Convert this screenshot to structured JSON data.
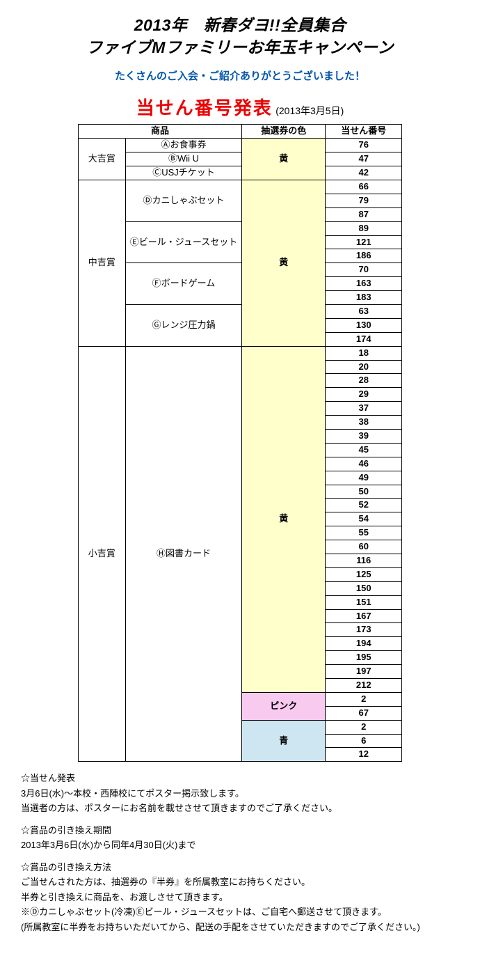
{
  "header": {
    "title_line1": "2013年　新春ダヨ!!全員集合",
    "title_line2": "ファイブMファミリーお年玉キャンペーン",
    "thanks": "たくさんのご入会・ご紹介ありがとうございました！",
    "announce": "当せん番号発表",
    "announce_date": "(2013年3月5日)"
  },
  "colors": {
    "yellow": "#ffffcc",
    "pink": "#f8caf0",
    "blue": "#cde6f2"
  },
  "table": {
    "headers": {
      "product": "商品",
      "ticket_color": "抽選券の色",
      "number": "当せん番号"
    },
    "groups": [
      {
        "category": "大吉賞",
        "colors": [
          {
            "label": "黄",
            "color_key": "yellow",
            "items": [
              {
                "name": "Ⓐお食事券",
                "numbers": [
                  76
                ]
              },
              {
                "name": "ⒷWii U",
                "numbers": [
                  47
                ]
              },
              {
                "name": "ⒸUSJチケット",
                "numbers": [
                  42
                ]
              }
            ]
          }
        ]
      },
      {
        "category": "中吉賞",
        "colors": [
          {
            "label": "黄",
            "color_key": "yellow",
            "items": [
              {
                "name": "Ⓓカニしゃぶセット",
                "numbers": [
                  66,
                  79,
                  87
                ]
              },
              {
                "name": "Ⓔビール・ジュースセット",
                "numbers": [
                  89,
                  121,
                  186
                ]
              },
              {
                "name": "Ⓕボードゲーム",
                "numbers": [
                  70,
                  163,
                  183
                ]
              },
              {
                "name": "Ⓖレンジ圧力鍋",
                "numbers": [
                  63,
                  130,
                  174
                ]
              }
            ]
          }
        ]
      },
      {
        "category": "小吉賞",
        "colors": [
          {
            "label": "黄",
            "color_key": "yellow",
            "items": [
              {
                "name": "Ⓗ図書カード",
                "numbers": [
                  18,
                  20,
                  28,
                  29,
                  37,
                  38,
                  39,
                  45,
                  46,
                  49,
                  50,
                  52,
                  54,
                  55,
                  60,
                  116,
                  125,
                  150,
                  151,
                  167,
                  173,
                  194,
                  195,
                  197,
                  212
                ]
              }
            ]
          },
          {
            "label": "ピンク",
            "color_key": "pink",
            "items": [
              {
                "name": null,
                "numbers": [
                  2,
                  67
                ]
              }
            ]
          },
          {
            "label": "青",
            "color_key": "blue",
            "items": [
              {
                "name": null,
                "numbers": [
                  2,
                  6,
                  12
                ]
              }
            ]
          }
        ]
      }
    ]
  },
  "notes": [
    [
      "☆当せん発表",
      "3月6日(水)～本校・西陣校にてポスター掲示致します。",
      "当選者の方は、ポスターにお名前を載せさせて頂きますのでご了承ください。"
    ],
    [
      "☆賞品の引き換え期間",
      "2013年3月6日(水)から同年4月30日(火)まで"
    ],
    [
      "☆賞品の引き換え方法",
      "ご当せんされた方は、抽選券の『半券』を所属教室にお持ちください。",
      "半券と引き換えに商品を、お渡しさせて頂きます。",
      "※Ⓓカニしゃぶセット(冷凍)Ⓔビール・ジュースセットは、ご自宅へ郵送させて頂きます。",
      "(所属教室に半券をお持ちいただいてから、配送の手配をさせていただきますのでご了承ください。)"
    ]
  ]
}
